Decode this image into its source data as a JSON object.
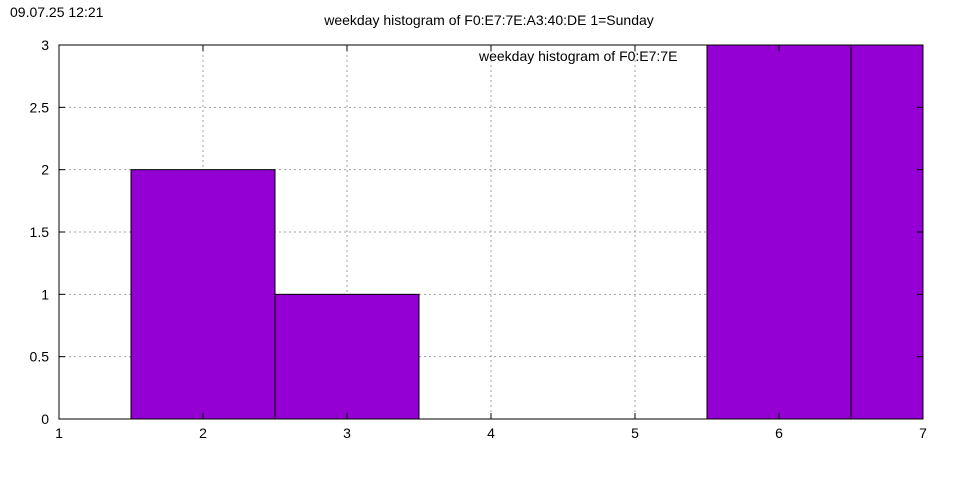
{
  "timestamp": "09.07.25 12:21",
  "chart_data": {
    "type": "bar",
    "title": "weekday histogram of F0:E7:7E:A3:40:DE 1=Sunday",
    "legend": {
      "text": "weekday histogram of F0:E7:7E",
      "placement": "top-right"
    },
    "x": [
      2,
      3,
      6,
      7
    ],
    "values": [
      2,
      1,
      3,
      3
    ],
    "bar_width": 1,
    "xlim": [
      1,
      7
    ],
    "ylim": [
      0,
      3
    ],
    "xticks": [
      1,
      2,
      3,
      4,
      5,
      6,
      7
    ],
    "yticks": [
      0,
      0.5,
      1,
      1.5,
      2,
      2.5,
      3
    ],
    "ytick_labels": [
      "0",
      "0.5",
      "1",
      "1.5",
      "2",
      "2.5",
      "3"
    ],
    "grid": true,
    "bar_color": "#9400d3"
  }
}
